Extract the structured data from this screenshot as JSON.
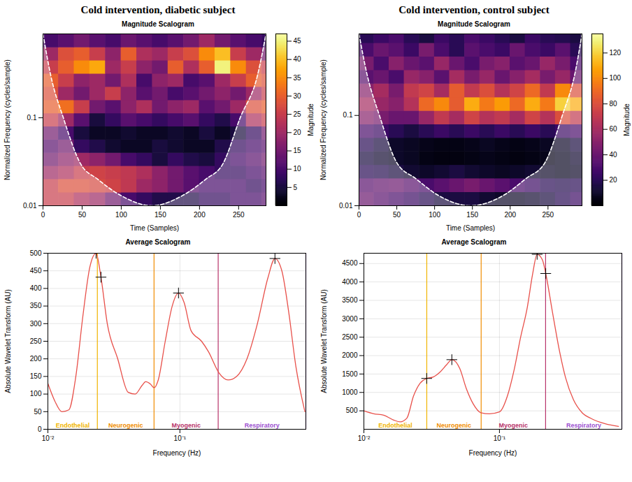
{
  "column_titles": [
    "Cold intervention, diabetic subject",
    "Cold intervention, control subject"
  ],
  "chart_data": [
    {
      "type": "heatmap",
      "title": "Magnitude Scalogram",
      "xlabel": "Time (Samples)",
      "ylabel": "Normalized Frequency (cycles/sample)",
      "log": "y",
      "xlim": [
        0,
        285
      ],
      "xticks": [
        0,
        50,
        100,
        150,
        200,
        250
      ],
      "ylim": [
        0.01,
        0.9
      ],
      "yticks": [
        0.01,
        0.1
      ],
      "x_edges": [
        0,
        20,
        40,
        60,
        80,
        100,
        120,
        140,
        160,
        180,
        200,
        220,
        240,
        260,
        280,
        285
      ],
      "y_edges": [
        0.01,
        0.0141,
        0.02,
        0.0282,
        0.0398,
        0.0562,
        0.0794,
        0.112,
        0.158,
        0.224,
        0.316,
        0.447,
        0.631,
        0.9
      ],
      "cells": [
        [
          25,
          25,
          22,
          20,
          15,
          10,
          8,
          6,
          6,
          6,
          8,
          8,
          10,
          10,
          12
        ],
        [
          25,
          28,
          28,
          27,
          26,
          24,
          20,
          18,
          15,
          12,
          10,
          10,
          10,
          8,
          10
        ],
        [
          20,
          22,
          25,
          26,
          25,
          24,
          22,
          18,
          15,
          12,
          10,
          8,
          8,
          10,
          12
        ],
        [
          15,
          18,
          20,
          18,
          15,
          10,
          8,
          5,
          8,
          6,
          5,
          8,
          10,
          12,
          15
        ],
        [
          12,
          15,
          8,
          6,
          4,
          3,
          3,
          5,
          4,
          3,
          3,
          6,
          8,
          10,
          12
        ],
        [
          15,
          10,
          5,
          3,
          3,
          4,
          3,
          3,
          4,
          3,
          5,
          3,
          5,
          8,
          15
        ],
        [
          25,
          20,
          12,
          5,
          8,
          12,
          10,
          8,
          10,
          12,
          8,
          6,
          10,
          22,
          25
        ],
        [
          30,
          32,
          25,
          15,
          12,
          18,
          22,
          15,
          18,
          20,
          12,
          15,
          20,
          28,
          30
        ],
        [
          28,
          20,
          15,
          20,
          25,
          18,
          12,
          15,
          10,
          12,
          15,
          18,
          15,
          20,
          25
        ],
        [
          30,
          25,
          18,
          20,
          15,
          22,
          10,
          18,
          20,
          10,
          12,
          20,
          25,
          30,
          28
        ],
        [
          25,
          30,
          35,
          38,
          20,
          25,
          18,
          15,
          30,
          22,
          30,
          45,
          35,
          28,
          25
        ],
        [
          20,
          28,
          30,
          25,
          18,
          30,
          22,
          20,
          25,
          28,
          35,
          40,
          25,
          20,
          15
        ],
        [
          10,
          12,
          15,
          12,
          10,
          14,
          12,
          10,
          12,
          15,
          20,
          15,
          12,
          10,
          8
        ]
      ],
      "colorbar": {
        "label": "Magnitude",
        "range": [
          0,
          47
        ],
        "ticks": [
          5,
          10,
          15,
          20,
          25,
          30,
          35,
          40,
          45
        ]
      },
      "coi": {
        "x": [
          0,
          10,
          26,
          48,
          70,
          100,
          139,
          178,
          208,
          230,
          252,
          274,
          285
        ],
        "y": [
          0.9,
          0.3,
          0.1,
          0.03,
          0.02,
          0.013,
          0.01,
          0.013,
          0.02,
          0.03,
          0.1,
          0.3,
          0.9
        ],
        "color": "#ffffff",
        "line_style": "dashed"
      }
    },
    {
      "type": "heatmap",
      "title": "Magnitude Scalogram",
      "xlabel": "Time (Samples)",
      "ylabel": "Normalized Frequency (cycles/sample)",
      "log": "y",
      "xlim": [
        0,
        295
      ],
      "xticks": [
        0,
        50,
        100,
        150,
        200,
        250
      ],
      "ylim": [
        0.01,
        0.8
      ],
      "yticks": [
        0.01,
        0.1
      ],
      "x_edges": [
        0,
        20,
        40,
        60,
        80,
        100,
        120,
        140,
        160,
        180,
        200,
        220,
        240,
        260,
        280,
        295
      ],
      "y_edges": [
        0.01,
        0.0141,
        0.02,
        0.0282,
        0.0398,
        0.0562,
        0.0794,
        0.112,
        0.158,
        0.224,
        0.316,
        0.447,
        0.631,
        0.8
      ],
      "cells": [
        [
          40,
          35,
          30,
          25,
          20,
          15,
          15,
          15,
          12,
          10,
          10,
          12,
          15,
          20,
          25
        ],
        [
          35,
          38,
          40,
          35,
          30,
          35,
          40,
          45,
          40,
          35,
          30,
          25,
          20,
          18,
          20
        ],
        [
          20,
          18,
          15,
          12,
          10,
          12,
          15,
          12,
          10,
          8,
          10,
          12,
          10,
          8,
          10
        ],
        [
          15,
          12,
          10,
          8,
          5,
          4,
          4,
          5,
          6,
          5,
          4,
          5,
          6,
          8,
          12
        ],
        [
          20,
          15,
          10,
          8,
          6,
          5,
          5,
          6,
          8,
          6,
          5,
          6,
          8,
          10,
          15
        ],
        [
          30,
          25,
          20,
          15,
          20,
          25,
          20,
          25,
          20,
          25,
          20,
          25,
          20,
          25,
          30
        ],
        [
          50,
          45,
          40,
          40,
          55,
          70,
          60,
          75,
          65,
          70,
          60,
          75,
          65,
          80,
          70
        ],
        [
          60,
          55,
          50,
          65,
          90,
          100,
          85,
          110,
          95,
          105,
          90,
          110,
          95,
          120,
          110
        ],
        [
          50,
          60,
          45,
          70,
          75,
          60,
          85,
          70,
          80,
          65,
          75,
          90,
          70,
          100,
          80
        ],
        [
          35,
          40,
          30,
          55,
          50,
          35,
          60,
          45,
          55,
          40,
          50,
          60,
          45,
          55,
          40
        ],
        [
          45,
          30,
          50,
          40,
          35,
          55,
          40,
          30,
          45,
          50,
          35,
          40,
          55,
          45,
          30
        ],
        [
          30,
          40,
          35,
          25,
          45,
          30,
          20,
          35,
          30,
          25,
          40,
          30,
          25,
          35,
          20
        ],
        [
          20,
          25,
          30,
          20,
          15,
          25,
          20,
          30,
          25,
          20,
          15,
          25,
          20,
          18,
          15
        ]
      ],
      "colorbar": {
        "label": "Magnitude",
        "range": [
          0,
          135
        ],
        "ticks": [
          20,
          40,
          60,
          80,
          100,
          120
        ]
      },
      "coi": {
        "x": [
          0,
          10,
          27,
          50,
          75,
          105,
          148,
          191,
          221,
          246,
          269,
          286,
          295
        ],
        "y": [
          0.8,
          0.3,
          0.1,
          0.03,
          0.02,
          0.013,
          0.01,
          0.013,
          0.02,
          0.03,
          0.1,
          0.3,
          0.8
        ],
        "color": "#ffffff",
        "line_style": "dashed"
      }
    },
    {
      "type": "line",
      "title": "Average Scalogram",
      "xlabel": "Frequency (Hz)",
      "ylabel": "Absolute Wavelet Transform (AU)",
      "log": "x",
      "grid": true,
      "xlim": [
        0.01,
        0.9
      ],
      "xticks": [
        {
          "value": 0.01,
          "label": "10⁻²"
        },
        {
          "value": 0.1,
          "label": "10⁻¹"
        }
      ],
      "ylim": [
        0,
        500
      ],
      "yticks": [
        0,
        50,
        100,
        150,
        200,
        250,
        300,
        350,
        400,
        450,
        500
      ],
      "x": [
        0.01,
        0.01129,
        0.01276,
        0.01441,
        0.01628,
        0.01839,
        0.02077,
        0.02318,
        0.02524,
        0.02818,
        0.03381,
        0.04059,
        0.04585,
        0.0518,
        0.05504,
        0.05996,
        0.06372,
        0.06855,
        0.07743,
        0.08747,
        0.09759,
        0.1076,
        0.1215,
        0.1459,
        0.1648,
        0.1978,
        0.2317,
        0.2685,
        0.3221,
        0.3864,
        0.4642,
        0.5248,
        0.5921,
        0.6689,
        0.7551,
        0.8852
      ],
      "values": [
        130,
        80,
        50,
        55,
        150,
        320,
        460,
        500,
        432,
        300,
        200,
        105,
        100,
        125,
        135,
        128,
        118,
        140,
        250,
        350,
        387,
        360,
        280,
        250,
        220,
        160,
        140,
        150,
        200,
        300,
        430,
        485,
        450,
        330,
        180,
        50
      ],
      "color": "#e8504a",
      "peaks": {
        "x": [
          0.02318,
          0.02524,
          0.09759,
          0.5248
        ],
        "y": [
          500,
          432,
          387,
          485
        ],
        "marker": "plus",
        "color": "#000000"
      },
      "bands": [
        {
          "name": "Endothelial",
          "from": 0.01,
          "to": 0.0237,
          "color": "#f0b400"
        },
        {
          "name": "Neurogenic",
          "from": 0.0237,
          "to": 0.0637,
          "color": "#f08c00"
        },
        {
          "name": "Myogenic",
          "from": 0.0637,
          "to": 0.195,
          "color": "#b8336a"
        },
        {
          "name": "Respiratory",
          "from": 0.195,
          "to": 0.9,
          "color": "#9b4fd0"
        }
      ]
    },
    {
      "type": "line",
      "title": "Average Scalogram",
      "xlabel": "Frequency (Hz)",
      "ylabel": "Absolute Wavelet Transform (AU)",
      "log": "x",
      "grid": true,
      "xlim": [
        0.01,
        0.8
      ],
      "xticks": [
        {
          "value": 0.01,
          "label": "10⁻²"
        },
        {
          "value": 0.1,
          "label": "10⁻¹"
        }
      ],
      "ylim": [
        0,
        4780
      ],
      "yticks": [
        500,
        1000,
        1500,
        2000,
        2500,
        3000,
        3500,
        4000,
        4500
      ],
      "x": [
        0.01,
        0.01184,
        0.01401,
        0.01658,
        0.01855,
        0.02075,
        0.02322,
        0.02597,
        0.02906,
        0.03252,
        0.03639,
        0.04071,
        0.04455,
        0.05097,
        0.05703,
        0.0638,
        0.073,
        0.0845,
        0.1,
        0.1144,
        0.1281,
        0.1433,
        0.1603,
        0.1754,
        0.1897,
        0.2075,
        0.2195,
        0.2456,
        0.2748,
        0.3074,
        0.3517,
        0.4071,
        0.4819,
        0.6034,
        0.7551
      ],
      "values": [
        500,
        420,
        380,
        250,
        200,
        300,
        900,
        1250,
        1380,
        1420,
        1550,
        1750,
        1890,
        1650,
        1100,
        700,
        450,
        420,
        470,
        900,
        1600,
        2500,
        3300,
        4200,
        4750,
        4600,
        4230,
        3200,
        2200,
        1400,
        800,
        450,
        280,
        150,
        80
      ],
      "color": "#e8504a",
      "peaks": {
        "x": [
          0.02906,
          0.04455,
          0.1897,
          0.2195
        ],
        "y": [
          1380,
          1890,
          4750,
          4230
        ],
        "marker": "plus",
        "color": "#000000"
      },
      "bands": [
        {
          "name": "Endothelial",
          "from": 0.01,
          "to": 0.0291,
          "color": "#f0b400"
        },
        {
          "name": "Neurogenic",
          "from": 0.0291,
          "to": 0.0733,
          "color": "#f08c00"
        },
        {
          "name": "Myogenic",
          "from": 0.0733,
          "to": 0.219,
          "color": "#b8336a"
        },
        {
          "name": "Respiratory",
          "from": 0.219,
          "to": 0.8,
          "color": "#9b4fd0"
        }
      ]
    }
  ]
}
